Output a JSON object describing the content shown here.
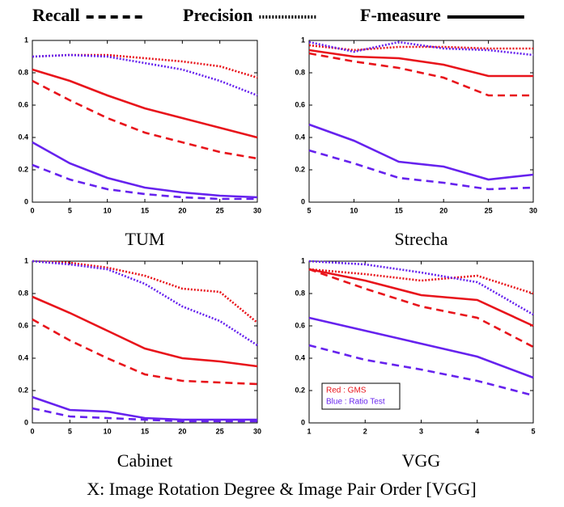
{
  "legend": [
    {
      "name": "Recall",
      "style": "dashed"
    },
    {
      "name": "Precision",
      "style": "dotted"
    },
    {
      "name": "F-measure",
      "style": "solid"
    }
  ],
  "methods": [
    {
      "label": "Red : GMS",
      "color": "#e8141b"
    },
    {
      "label": "Blue : Ratio Test",
      "color": "#6622ee"
    }
  ],
  "caption": "X: Image Rotation Degree & Image Pair Order [VGG]",
  "chart_data": [
    {
      "type": "line",
      "title": "TUM",
      "x": [
        0,
        5,
        10,
        15,
        20,
        25,
        30
      ],
      "xlim": [
        0,
        30
      ],
      "xticks": [
        0,
        5,
        10,
        15,
        20,
        25,
        30
      ],
      "ylim": [
        0,
        1
      ],
      "yticks": [
        0,
        0.2,
        0.4,
        0.6,
        0.8,
        1
      ],
      "series": [
        {
          "style": "dashed",
          "color": "#e8141b",
          "values": [
            0.75,
            0.63,
            0.52,
            0.43,
            0.37,
            0.31,
            0.27
          ]
        },
        {
          "style": "dotted",
          "color": "#e8141b",
          "values": [
            0.9,
            0.91,
            0.91,
            0.89,
            0.87,
            0.84,
            0.77
          ]
        },
        {
          "style": "solid",
          "color": "#e8141b",
          "values": [
            0.82,
            0.75,
            0.66,
            0.58,
            0.52,
            0.46,
            0.4
          ]
        },
        {
          "style": "dashed",
          "color": "#6622ee",
          "values": [
            0.23,
            0.14,
            0.08,
            0.05,
            0.03,
            0.02,
            0.02
          ]
        },
        {
          "style": "dotted",
          "color": "#6622ee",
          "values": [
            0.9,
            0.91,
            0.9,
            0.86,
            0.82,
            0.75,
            0.66
          ]
        },
        {
          "style": "solid",
          "color": "#6622ee",
          "values": [
            0.37,
            0.24,
            0.15,
            0.09,
            0.06,
            0.04,
            0.03
          ]
        }
      ]
    },
    {
      "type": "line",
      "title": "Strecha",
      "x": [
        5,
        10,
        15,
        20,
        25,
        30
      ],
      "xlim": [
        5,
        30
      ],
      "xticks": [
        5,
        10,
        15,
        20,
        25,
        30
      ],
      "ylim": [
        0,
        1
      ],
      "yticks": [
        0,
        0.2,
        0.4,
        0.6,
        0.8,
        1
      ],
      "series": [
        {
          "style": "dashed",
          "color": "#e8141b",
          "values": [
            0.92,
            0.87,
            0.83,
            0.77,
            0.66,
            0.66
          ]
        },
        {
          "style": "dotted",
          "color": "#e8141b",
          "values": [
            0.97,
            0.94,
            0.96,
            0.96,
            0.95,
            0.95
          ]
        },
        {
          "style": "solid",
          "color": "#e8141b",
          "values": [
            0.94,
            0.9,
            0.89,
            0.85,
            0.78,
            0.78
          ]
        },
        {
          "style": "dashed",
          "color": "#6622ee",
          "values": [
            0.32,
            0.24,
            0.15,
            0.12,
            0.08,
            0.09
          ]
        },
        {
          "style": "dotted",
          "color": "#6622ee",
          "values": [
            0.99,
            0.93,
            0.99,
            0.95,
            0.94,
            0.91
          ]
        },
        {
          "style": "solid",
          "color": "#6622ee",
          "values": [
            0.48,
            0.38,
            0.25,
            0.22,
            0.14,
            0.17
          ]
        }
      ]
    },
    {
      "type": "line",
      "title": "Cabinet",
      "x": [
        0,
        5,
        10,
        15,
        20,
        25,
        30
      ],
      "xlim": [
        0,
        30
      ],
      "xticks": [
        0,
        5,
        10,
        15,
        20,
        25,
        30
      ],
      "ylim": [
        0,
        1
      ],
      "yticks": [
        0,
        0.2,
        0.4,
        0.6,
        0.8,
        1
      ],
      "series": [
        {
          "style": "dashed",
          "color": "#e8141b",
          "values": [
            0.64,
            0.51,
            0.4,
            0.3,
            0.26,
            0.25,
            0.24
          ]
        },
        {
          "style": "dotted",
          "color": "#e8141b",
          "values": [
            1.0,
            0.99,
            0.96,
            0.91,
            0.83,
            0.81,
            0.62
          ]
        },
        {
          "style": "solid",
          "color": "#e8141b",
          "values": [
            0.78,
            0.68,
            0.57,
            0.46,
            0.4,
            0.38,
            0.35
          ]
        },
        {
          "style": "dashed",
          "color": "#6622ee",
          "values": [
            0.09,
            0.04,
            0.03,
            0.02,
            0.01,
            0.01,
            0.01
          ]
        },
        {
          "style": "dotted",
          "color": "#6622ee",
          "values": [
            1.0,
            0.98,
            0.95,
            0.86,
            0.72,
            0.63,
            0.48
          ]
        },
        {
          "style": "solid",
          "color": "#6622ee",
          "values": [
            0.16,
            0.08,
            0.07,
            0.03,
            0.02,
            0.02,
            0.02
          ]
        }
      ]
    },
    {
      "type": "line",
      "title": "VGG",
      "x": [
        1,
        2,
        3,
        4,
        5
      ],
      "xlim": [
        1,
        5
      ],
      "xticks": [
        1,
        2,
        3,
        4,
        5
      ],
      "ylim": [
        0,
        1
      ],
      "yticks": [
        0,
        0.2,
        0.4,
        0.6,
        0.8,
        1
      ],
      "series": [
        {
          "style": "dashed",
          "color": "#e8141b",
          "values": [
            0.95,
            0.83,
            0.72,
            0.65,
            0.47
          ]
        },
        {
          "style": "dotted",
          "color": "#e8141b",
          "values": [
            0.95,
            0.92,
            0.88,
            0.91,
            0.8
          ]
        },
        {
          "style": "solid",
          "color": "#e8141b",
          "values": [
            0.95,
            0.88,
            0.79,
            0.76,
            0.6
          ]
        },
        {
          "style": "dashed",
          "color": "#6622ee",
          "values": [
            0.48,
            0.39,
            0.33,
            0.26,
            0.17
          ]
        },
        {
          "style": "dotted",
          "color": "#6622ee",
          "values": [
            1.0,
            0.98,
            0.93,
            0.87,
            0.67
          ]
        },
        {
          "style": "solid",
          "color": "#6622ee",
          "values": [
            0.65,
            0.57,
            0.49,
            0.41,
            0.28
          ]
        }
      ]
    }
  ]
}
